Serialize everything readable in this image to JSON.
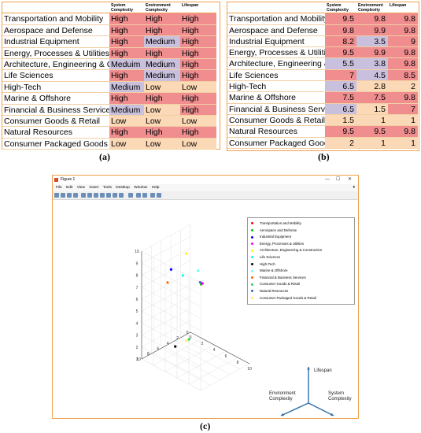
{
  "table_a": {
    "caption": "(a)",
    "headers": [
      "",
      "System Complexity",
      "Environment Complexity",
      "Lifespan"
    ],
    "rows": [
      {
        "label": "Transportation and Mobility",
        "values": [
          "High",
          "High",
          "High"
        ]
      },
      {
        "label": "Aerospace and Defense",
        "values": [
          "High",
          "High",
          "High"
        ]
      },
      {
        "label": "Industrial Equipment",
        "values": [
          "High",
          "Medium",
          "High"
        ]
      },
      {
        "label": "Energy, Processes & Utilities",
        "values": [
          "High",
          "High",
          "High"
        ]
      },
      {
        "label": "Architecture, Engineering & C",
        "values": [
          "Meduim",
          "Medium",
          "High"
        ]
      },
      {
        "label": "Life Sciences",
        "values": [
          "High",
          "Medium",
          "High"
        ]
      },
      {
        "label": "High-Tech",
        "values": [
          "Medium",
          "Low",
          "Low"
        ]
      },
      {
        "label": "Marine & Offshore",
        "values": [
          "High",
          "High",
          "High"
        ]
      },
      {
        "label": "Financial & Business Services",
        "values": [
          "Medium",
          "Low",
          "High"
        ]
      },
      {
        "label": "Consumer Goods & Retail",
        "values": [
          "Low",
          "Low",
          "Low"
        ]
      },
      {
        "label": "Natural Resources",
        "values": [
          "High",
          "High",
          "High"
        ]
      },
      {
        "label": "Consumer Packaged Goods &",
        "values": [
          "Low",
          "Low",
          "Low"
        ]
      }
    ]
  },
  "table_b": {
    "caption": "(b)",
    "headers": [
      "",
      "System Complexity",
      "Environment Complexity",
      "Lifespan"
    ],
    "rows": [
      {
        "label": "Transportation and Mobility",
        "values": [
          "9.5",
          "9.8",
          "9.8"
        ]
      },
      {
        "label": "Aerospace and Defense",
        "values": [
          "9.8",
          "9.9",
          "9.8"
        ]
      },
      {
        "label": "Industrial Equipment",
        "values": [
          "8.2",
          "3.5",
          "9"
        ]
      },
      {
        "label": "Energy, Processes & Utilities",
        "values": [
          "9.5",
          "9.9",
          "9.8"
        ]
      },
      {
        "label": "Architecture, Engineering & C",
        "values": [
          "5.5",
          "3.8",
          "9.8"
        ]
      },
      {
        "label": "Life Sciences",
        "values": [
          "7",
          "4.5",
          "8.5"
        ]
      },
      {
        "label": "High-Tech",
        "values": [
          "6.5",
          "2.8",
          "2"
        ]
      },
      {
        "label": "Marine & Offshore",
        "values": [
          "7.5",
          "7.5",
          "9.8"
        ]
      },
      {
        "label": "Financial & Business Services",
        "values": [
          "6.5",
          "1.5",
          "7"
        ]
      },
      {
        "label": "Consumer Goods & Retail",
        "values": [
          "1.5",
          "1",
          "1"
        ]
      },
      {
        "label": "Natural Resources",
        "values": [
          "9.5",
          "9.5",
          "9.8"
        ]
      },
      {
        "label": "Consumer Packaged Goods &",
        "values": [
          "2",
          "1",
          "1"
        ]
      }
    ]
  },
  "colors": {
    "high": "#ef8d8f",
    "medium": "#c9c0dd",
    "low": "#fcd9b6",
    "border": "#f0a04b"
  },
  "figure": {
    "caption": "(c)",
    "window_title": "Figure 1",
    "window_buttons": [
      "—",
      "☐",
      "✕"
    ],
    "menu": [
      "File",
      "Edit",
      "View",
      "Insert",
      "Tools",
      "Desktop",
      "Window",
      "Help"
    ],
    "axis_legend": {
      "lifespan": "Lifespan",
      "environment": "Environment Complexity",
      "system": "System Complexity"
    }
  },
  "chart_data": {
    "type": "scatter",
    "title": "",
    "xlabel": "",
    "ylabel": "",
    "zlabel": "",
    "xlim": [
      0,
      10
    ],
    "ylim": [
      0,
      10
    ],
    "zlim": [
      1,
      10
    ],
    "x_ticks": [
      "0",
      "2",
      "4",
      "6",
      "8",
      "10"
    ],
    "y_ticks": [
      "0",
      "2",
      "4",
      "6",
      "8",
      "10"
    ],
    "z_ticks": [
      "1",
      "2",
      "3",
      "4",
      "5",
      "6",
      "7",
      "8",
      "9",
      "10"
    ],
    "grid": true,
    "legend_position": "top-right",
    "series": [
      {
        "name": "Transportation and Mobility",
        "color": "#ff0000",
        "x": 9.5,
        "y": 9.8,
        "z": 9.8
      },
      {
        "name": "Aerospace and Defense",
        "color": "#00cc00",
        "x": 9.8,
        "y": 9.9,
        "z": 9.8
      },
      {
        "name": "Industrial Equipment",
        "color": "#0000ff",
        "x": 8.2,
        "y": 3.5,
        "z": 9
      },
      {
        "name": "Energy, Processes & Utilities",
        "color": "#ff00ff",
        "x": 9.5,
        "y": 9.9,
        "z": 9.8
      },
      {
        "name": "Architecture, Engineering & Construction",
        "color": "#ffff00",
        "x": 5.5,
        "y": 3.8,
        "z": 9.8
      },
      {
        "name": "Life Sciences",
        "color": "#00ffff",
        "x": 7,
        "y": 4.5,
        "z": 8.5
      },
      {
        "name": "High-Tech",
        "color": "#000000",
        "x": 6.5,
        "y": 2.8,
        "z": 2
      },
      {
        "name": "Marine & Offshore",
        "color": "#66ffff",
        "x": 7.5,
        "y": 7.5,
        "z": 9.8
      },
      {
        "name": "Financial & Business Services",
        "color": "#ff6600",
        "x": 6.5,
        "y": 1.5,
        "z": 7
      },
      {
        "name": "Consumer Goods & Retail",
        "color": "#33cc66",
        "x": 1.5,
        "y": 1,
        "z": 1
      },
      {
        "name": "Natural Resources",
        "color": "#3366cc",
        "x": 9.5,
        "y": 9.5,
        "z": 9.8
      },
      {
        "name": "Consumer Packaged Goods & Retail",
        "color": "#ffee55",
        "x": 2,
        "y": 1,
        "z": 1
      }
    ]
  }
}
